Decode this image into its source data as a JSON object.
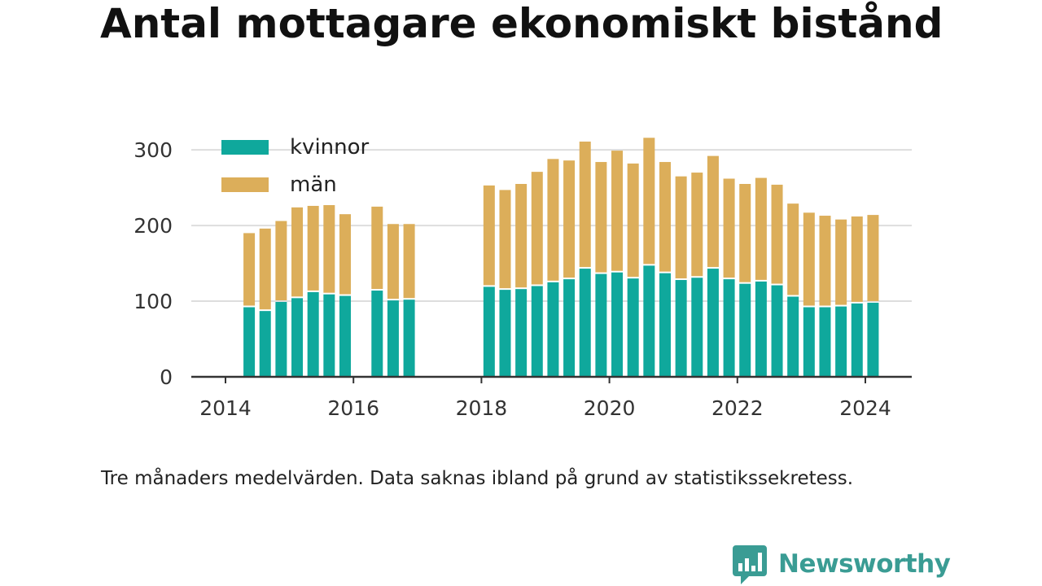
{
  "title": "Antal mottagare ekonomiskt bistånd",
  "caption": "Tre månaders medelvärden. Data saknas ibland på grund av statistikssekretess.",
  "brand": {
    "name": "Newsworthy",
    "color": "#3a9c94"
  },
  "chart_data": {
    "type": "bar",
    "stacked": true,
    "title": "Antal mottagare ekonomiskt bistånd",
    "xlabel": "",
    "ylabel": "",
    "ylim": [
      0,
      340
    ],
    "xlim": [
      2013.5,
      2025.1
    ],
    "y_ticks": [
      0,
      100,
      200,
      300
    ],
    "x_ticks": [
      2014,
      2016,
      2018,
      2020,
      2022,
      2024
    ],
    "grid": true,
    "legend_position": "top-left",
    "colors": {
      "kvinnor": "#0fa89c",
      "män": "#dcae5a",
      "grid": "#dddddd",
      "axis": "#333333"
    },
    "x": [
      2014.37,
      2014.62,
      2014.87,
      2015.12,
      2015.37,
      2015.62,
      2015.87,
      2016.37,
      2016.62,
      2016.87,
      2018.12,
      2018.37,
      2018.62,
      2018.87,
      2019.12,
      2019.37,
      2019.62,
      2019.87,
      2020.12,
      2020.37,
      2020.62,
      2020.87,
      2021.12,
      2021.37,
      2021.62,
      2021.87,
      2022.12,
      2022.37,
      2022.62,
      2022.87,
      2023.12,
      2023.37,
      2023.62,
      2023.87,
      2024.12
    ],
    "series": [
      {
        "name": "kvinnor",
        "values": [
          92,
          87,
          99,
          104,
          112,
          109,
          107,
          114,
          101,
          102,
          119,
          115,
          116,
          120,
          125,
          129,
          143,
          136,
          138,
          130,
          147,
          137,
          128,
          131,
          143,
          129,
          123,
          126,
          121,
          106,
          92,
          92,
          93,
          97,
          98
        ]
      },
      {
        "name": "män",
        "values": [
          98,
          109,
          107,
          120,
          114,
          118,
          108,
          111,
          101,
          100,
          134,
          132,
          139,
          151,
          163,
          157,
          168,
          148,
          161,
          152,
          169,
          147,
          137,
          139,
          149,
          133,
          132,
          137,
          133,
          123,
          125,
          121,
          115,
          115,
          116
        ]
      }
    ]
  }
}
